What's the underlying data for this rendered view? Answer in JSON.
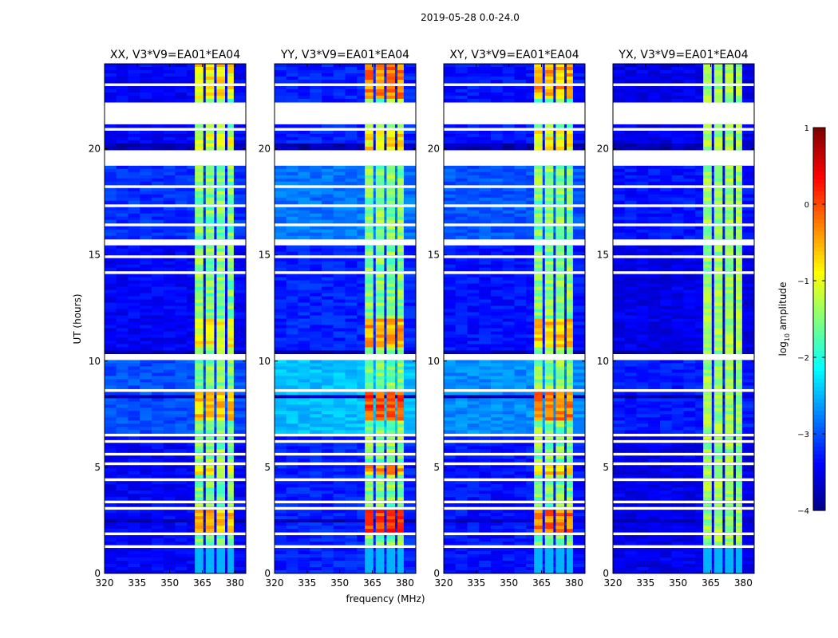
{
  "suptitle": "2019-05-28 0.0-24.0",
  "chart_data": {
    "type": "heatmap",
    "panels": [
      {
        "title": "XX, V3*V9=EA01*EA04",
        "pol": "XX"
      },
      {
        "title": "YY, V3*V9=EA01*EA04",
        "pol": "YY"
      },
      {
        "title": "XY, V3*V9=EA01*EA04",
        "pol": "XY"
      },
      {
        "title": "YX, V3*V9=EA01*EA04",
        "pol": "YX"
      }
    ],
    "xlabel": "frequency (MHz)",
    "ylabel": "UT (hours)",
    "xlim": [
      320,
      385
    ],
    "ylim": [
      0,
      24
    ],
    "x_ticks": [
      320,
      335,
      350,
      365,
      380
    ],
    "y_ticks": [
      0,
      5,
      10,
      15,
      20
    ],
    "colorbar": {
      "label": "log",
      "label_sub": "10",
      "label_rest": " amplitude",
      "range": [
        -4,
        1
      ],
      "ticks": [
        1,
        0,
        -1,
        -2,
        -3,
        -4
      ],
      "tick_labels": [
        "1",
        "0",
        "−1",
        "−2",
        "−3",
        "−4"
      ],
      "colormap": "jet"
    },
    "band_mhz": [
      361,
      380
    ],
    "band_columns_mhz": [
      361,
      366,
      371,
      376,
      380
    ],
    "flagged_hours": [
      [
        1.25,
        1.4
      ],
      [
        1.8,
        1.9
      ],
      [
        2.2,
        2.3
      ],
      [
        2.65,
        2.75
      ],
      [
        3.05,
        3.15
      ],
      [
        3.35,
        3.45
      ],
      [
        4.4,
        4.5
      ],
      [
        5.1,
        5.2
      ],
      [
        5.55,
        5.65
      ],
      [
        6.15,
        6.25
      ],
      [
        6.5,
        6.6
      ],
      [
        7.9,
        8.0
      ],
      [
        8.55,
        8.65
      ],
      [
        10.1,
        10.3
      ],
      [
        13.0,
        13.1
      ],
      [
        13.6,
        13.7
      ],
      [
        14.1,
        14.2
      ],
      [
        14.9,
        15.0
      ],
      [
        15.5,
        15.7
      ],
      [
        16.0,
        16.1
      ],
      [
        16.4,
        16.5
      ],
      [
        16.9,
        17.0
      ],
      [
        17.3,
        17.4
      ],
      [
        17.8,
        17.9
      ],
      [
        18.2,
        18.35
      ],
      [
        19.2,
        19.9
      ],
      [
        20.9,
        21.0
      ],
      [
        21.2,
        22.2
      ],
      [
        23.0,
        23.1
      ],
      [
        23.5,
        23.6
      ]
    ],
    "dark_hours": [
      [
        2.35,
        2.55
      ],
      [
        8.3,
        8.4
      ],
      [
        10.4,
        10.55
      ],
      [
        11.2,
        11.3
      ],
      [
        20.0,
        20.2
      ],
      [
        19.9,
        19.95
      ]
    ],
    "panel_gain": {
      "XX": 0.0,
      "YY": 0.45,
      "XY": 0.25,
      "YX": -0.2
    },
    "hot_hours": [
      [
        2.0,
        3.0,
        0.9
      ],
      [
        4.6,
        5.3,
        0.6
      ],
      [
        7.2,
        8.6,
        0.85
      ],
      [
        10.6,
        12.0,
        0.6
      ],
      [
        19.8,
        21.0,
        0.4
      ],
      [
        22.3,
        24.0,
        0.7
      ]
    ]
  }
}
